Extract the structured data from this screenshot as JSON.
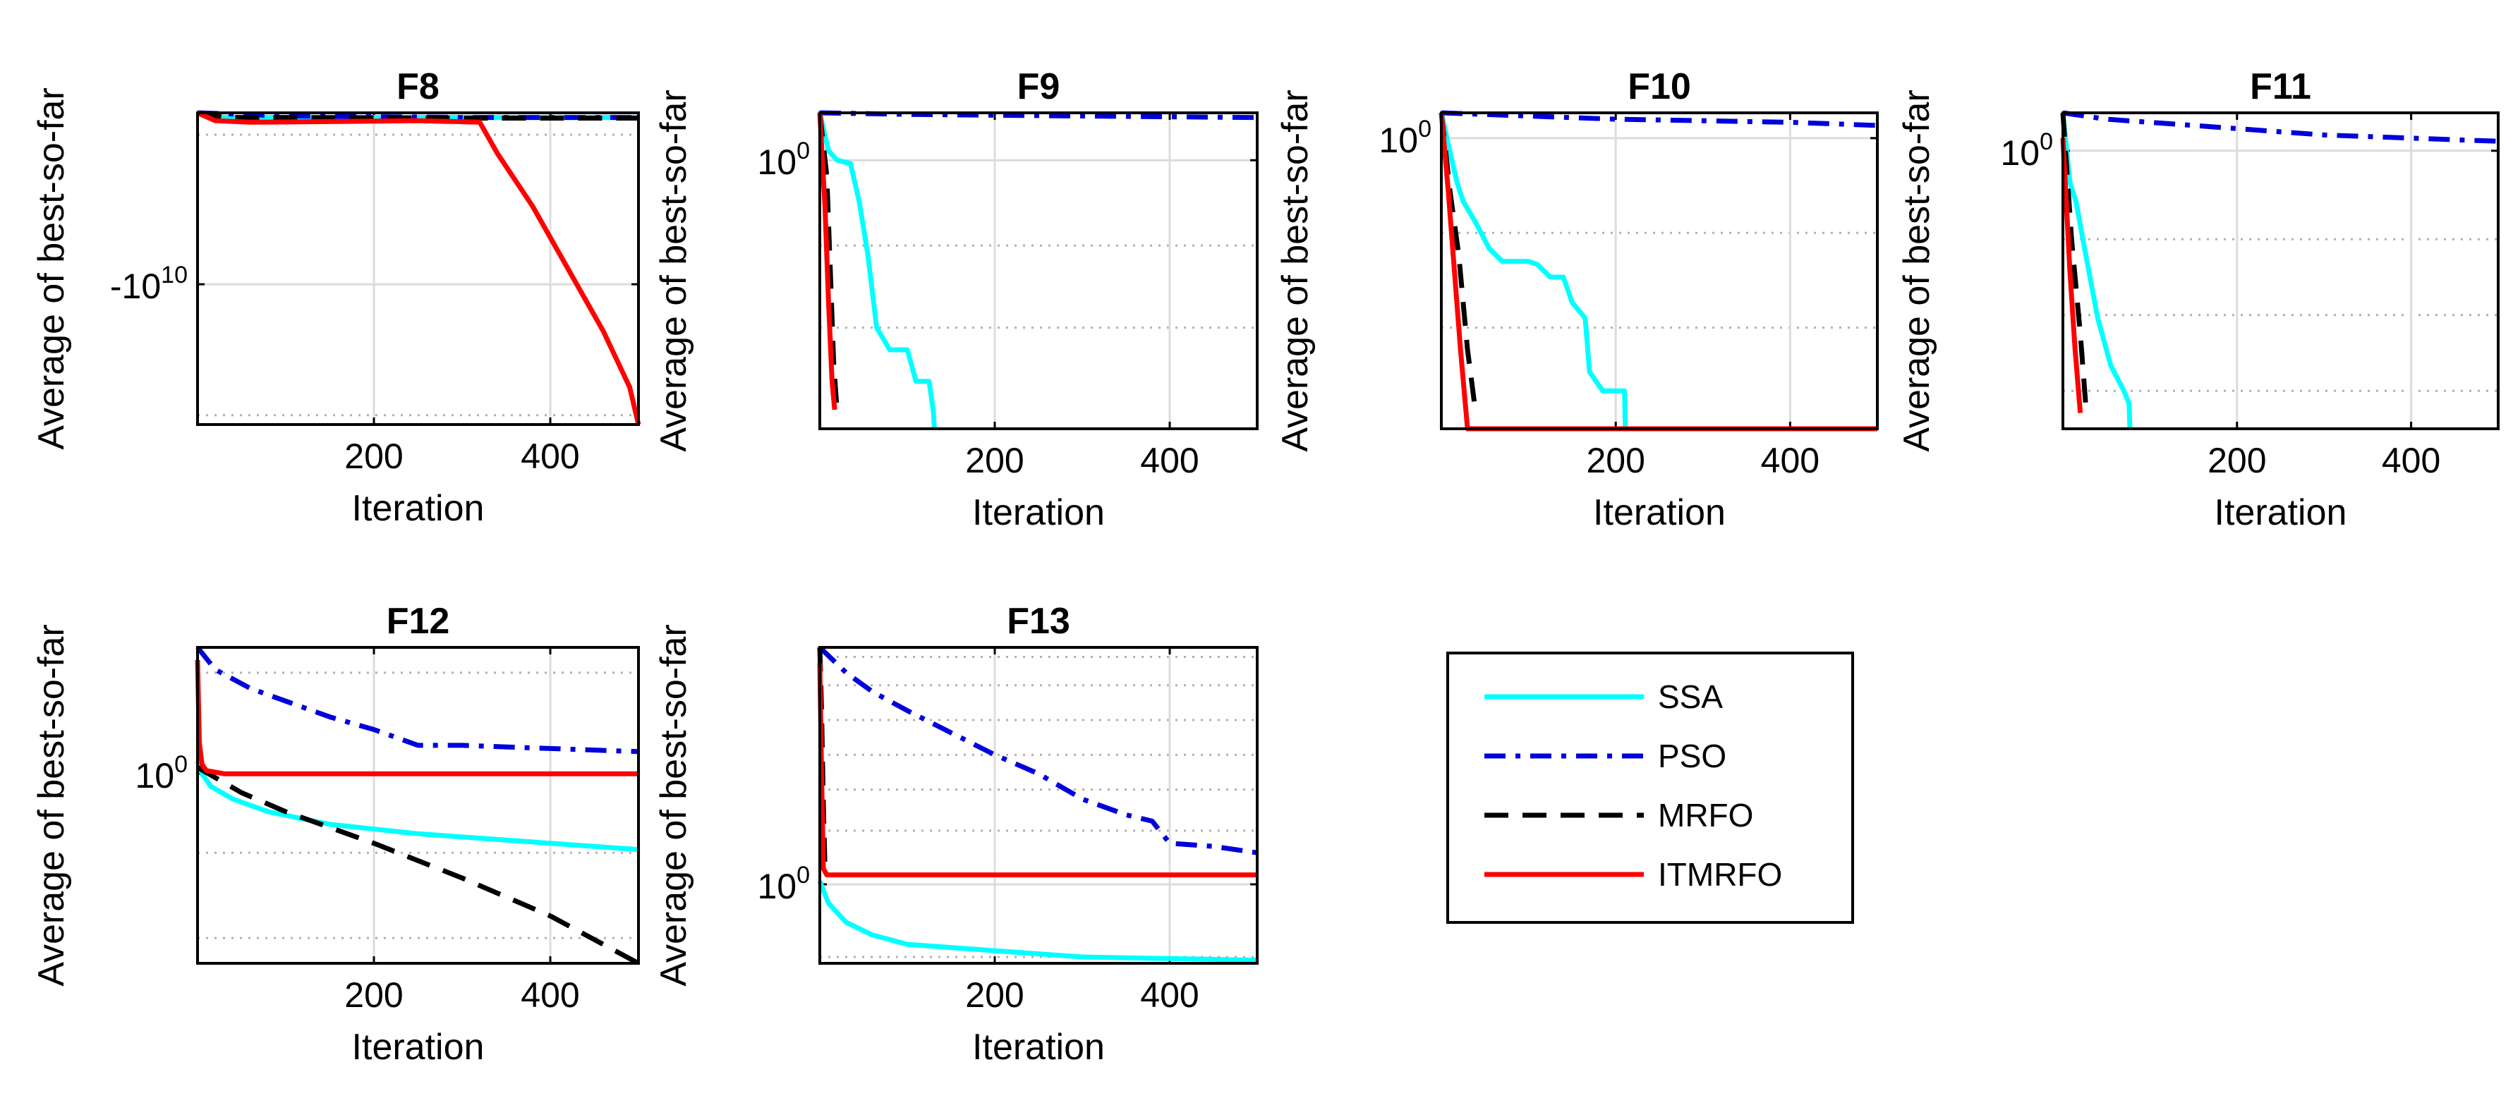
{
  "figure": {
    "legend": [
      {
        "name": "SSA",
        "color": "#00FFFF",
        "dash": "solid"
      },
      {
        "name": "PSO",
        "color": "#0000DD",
        "dash": "dashdot"
      },
      {
        "name": "MRFO",
        "color": "#000000",
        "dash": "dashed"
      },
      {
        "name": "ITMRFO",
        "color": "#FF0000",
        "dash": "solid"
      }
    ]
  },
  "chart_data": [
    {
      "type": "line",
      "title": "F8",
      "xlabel": "Iteration",
      "ylabel": "Average of best-so-far",
      "xlim": [
        0,
        500
      ],
      "ylim": [
        0,
        1
      ],
      "grid": true,
      "xticks": [
        200,
        400
      ],
      "yticks": [
        {
          "v": 0.45,
          "major": "-10",
          "exp": "10"
        }
      ],
      "minor_y": [
        0.93,
        0.03
      ],
      "series": [
        {
          "name": "SSA",
          "x": [
            0,
            30,
            500
          ],
          "y": [
            1.0,
            0.985,
            0.985
          ]
        },
        {
          "name": "PSO",
          "x": [
            0,
            100,
            300,
            500
          ],
          "y": [
            1.0,
            0.99,
            0.985,
            0.985
          ]
        },
        {
          "name": "MRFO",
          "x": [
            0,
            30,
            100,
            300,
            500
          ],
          "y": [
            1.0,
            0.985,
            0.985,
            0.983,
            0.983
          ]
        },
        {
          "name": "ITMRFO",
          "x": [
            0,
            20,
            60,
            150,
            250,
            320,
            340,
            380,
            420,
            460,
            490,
            500
          ],
          "y": [
            1.0,
            0.975,
            0.97,
            0.972,
            0.975,
            0.97,
            0.87,
            0.7,
            0.5,
            0.3,
            0.12,
            0.0
          ]
        }
      ]
    },
    {
      "type": "line",
      "title": "F9",
      "xlabel": "Iteration",
      "ylabel": "Average of best-so-far",
      "xlim": [
        0,
        500
      ],
      "ylim": [
        0,
        1
      ],
      "grid": true,
      "xticks": [
        200,
        400
      ],
      "yticks": [
        {
          "v": 0.85,
          "major": "10",
          "exp": "0"
        }
      ],
      "minor_y": [
        0.58,
        0.32
      ],
      "series": [
        {
          "name": "SSA",
          "x": [
            0,
            10,
            20,
            35,
            45,
            55,
            65,
            80,
            100,
            110,
            125,
            130,
            131
          ],
          "y": [
            1.0,
            0.88,
            0.85,
            0.84,
            0.72,
            0.55,
            0.32,
            0.25,
            0.25,
            0.15,
            0.15,
            0.05,
            0.0
          ]
        },
        {
          "name": "PSO",
          "x": [
            0,
            100,
            300,
            500
          ],
          "y": [
            1.0,
            0.995,
            0.99,
            0.985
          ]
        },
        {
          "name": "MRFO",
          "x": [
            0,
            8,
            12,
            16,
            20
          ],
          "y": [
            1.0,
            0.8,
            0.5,
            0.2,
            0.05
          ]
        },
        {
          "name": "ITMRFO",
          "x": [
            0,
            6,
            10,
            14,
            17
          ],
          "y": [
            1.0,
            0.7,
            0.4,
            0.15,
            0.06
          ]
        }
      ]
    },
    {
      "type": "line",
      "title": "F10",
      "xlabel": "Iteration",
      "ylabel": "Average of best-so-far",
      "xlim": [
        0,
        500
      ],
      "ylim": [
        0,
        1
      ],
      "grid": true,
      "xticks": [
        200,
        400
      ],
      "yticks": [
        {
          "v": 0.92,
          "major": "10",
          "exp": "0"
        }
      ],
      "minor_y": [
        0.62,
        0.32
      ],
      "series": [
        {
          "name": "SSA",
          "x": [
            0,
            8,
            18,
            25,
            40,
            55,
            70,
            100,
            110,
            125,
            140,
            150,
            165,
            170,
            185,
            210,
            211
          ],
          "y": [
            1.0,
            0.9,
            0.78,
            0.72,
            0.65,
            0.57,
            0.53,
            0.53,
            0.52,
            0.48,
            0.48,
            0.4,
            0.35,
            0.18,
            0.12,
            0.12,
            0.0
          ]
        },
        {
          "name": "PSO",
          "x": [
            0,
            200,
            400,
            500
          ],
          "y": [
            1.0,
            0.98,
            0.97,
            0.96
          ]
        },
        {
          "name": "MRFO",
          "x": [
            0,
            10,
            20,
            30,
            38
          ],
          "y": [
            1.0,
            0.75,
            0.55,
            0.25,
            0.08
          ]
        },
        {
          "name": "ITMRFO",
          "x": [
            0,
            8,
            15,
            22,
            30,
            500
          ],
          "y": [
            1.0,
            0.75,
            0.5,
            0.25,
            0.0,
            0.0
          ]
        }
      ]
    },
    {
      "type": "line",
      "title": "F11",
      "xlabel": "Iteration",
      "ylabel": "Average of best-so-far",
      "xlim": [
        0,
        500
      ],
      "ylim": [
        0,
        1
      ],
      "grid": true,
      "xticks": [
        200,
        400
      ],
      "yticks": [
        {
          "v": 0.88,
          "major": "10",
          "exp": "0"
        }
      ],
      "minor_y": [
        0.6,
        0.36,
        0.12
      ],
      "series": [
        {
          "name": "SSA",
          "x": [
            0,
            8,
            15,
            25,
            40,
            55,
            70,
            76,
            77
          ],
          "y": [
            1.0,
            0.78,
            0.72,
            0.57,
            0.35,
            0.2,
            0.12,
            0.08,
            0.0
          ]
        },
        {
          "name": "PSO",
          "x": [
            0,
            50,
            150,
            300,
            500
          ],
          "y": [
            1.0,
            0.98,
            0.96,
            0.93,
            0.91
          ]
        },
        {
          "name": "MRFO",
          "x": [
            0,
            10,
            20,
            27
          ],
          "y": [
            1.0,
            0.6,
            0.3,
            0.05
          ]
        },
        {
          "name": "ITMRFO",
          "x": [
            0,
            8,
            14,
            20
          ],
          "y": [
            0.92,
            0.5,
            0.25,
            0.05
          ]
        }
      ]
    },
    {
      "type": "line",
      "title": "F12",
      "xlabel": "Iteration",
      "ylabel": "Average of best-so-far",
      "xlim": [
        0,
        500
      ],
      "ylim": [
        0,
        1
      ],
      "grid": true,
      "xticks": [
        200,
        400
      ],
      "yticks": [
        {
          "v": 0.6,
          "major": "10",
          "exp": "0"
        }
      ],
      "minor_y": [
        0.92,
        0.35,
        0.08
      ],
      "series": [
        {
          "name": "SSA",
          "x": [
            0,
            5,
            15,
            40,
            80,
            150,
            250,
            350,
            450,
            500
          ],
          "y": [
            0.64,
            0.6,
            0.56,
            0.52,
            0.48,
            0.44,
            0.41,
            0.39,
            0.37,
            0.36
          ]
        },
        {
          "name": "PSO",
          "x": [
            0,
            20,
            60,
            100,
            150,
            200,
            250,
            300,
            400,
            500
          ],
          "y": [
            1.0,
            0.93,
            0.87,
            0.83,
            0.78,
            0.74,
            0.69,
            0.69,
            0.68,
            0.67
          ]
        },
        {
          "name": "MRFO",
          "x": [
            0,
            50,
            100,
            200,
            300,
            400,
            500
          ],
          "y": [
            0.62,
            0.54,
            0.48,
            0.38,
            0.27,
            0.15,
            0.0
          ]
        },
        {
          "name": "ITMRFO",
          "x": [
            0,
            2,
            5,
            10,
            30,
            100,
            500
          ],
          "y": [
            0.96,
            0.7,
            0.63,
            0.61,
            0.6,
            0.6,
            0.6
          ]
        }
      ]
    },
    {
      "type": "line",
      "title": "F13",
      "xlabel": "Iteration",
      "ylabel": "Average of best-so-far",
      "xlim": [
        0,
        500
      ],
      "ylim": [
        0,
        1
      ],
      "grid": true,
      "xticks": [
        200,
        400
      ],
      "yticks": [
        {
          "v": 0.25,
          "major": "10",
          "exp": "0"
        }
      ],
      "minor_y": [
        0.97,
        0.88,
        0.77,
        0.66,
        0.55,
        0.42,
        0.02
      ],
      "series": [
        {
          "name": "SSA",
          "x": [
            0,
            10,
            30,
            60,
            100,
            200,
            300,
            400,
            500
          ],
          "y": [
            0.26,
            0.19,
            0.13,
            0.09,
            0.06,
            0.04,
            0.02,
            0.015,
            0.01
          ]
        },
        {
          "name": "PSO",
          "x": [
            0,
            30,
            60,
            100,
            150,
            200,
            250,
            300,
            350,
            380,
            400,
            450,
            500
          ],
          "y": [
            1.0,
            0.92,
            0.86,
            0.8,
            0.73,
            0.66,
            0.6,
            0.52,
            0.47,
            0.45,
            0.38,
            0.37,
            0.35
          ]
        },
        {
          "name": "MRFO",
          "x": [
            0,
            2,
            4,
            6
          ],
          "y": [
            1.0,
            0.8,
            0.5,
            0.3
          ]
        },
        {
          "name": "ITMRFO",
          "x": [
            0,
            2,
            4,
            8,
            500
          ],
          "y": [
            0.95,
            0.6,
            0.3,
            0.28,
            0.28
          ]
        }
      ]
    }
  ]
}
